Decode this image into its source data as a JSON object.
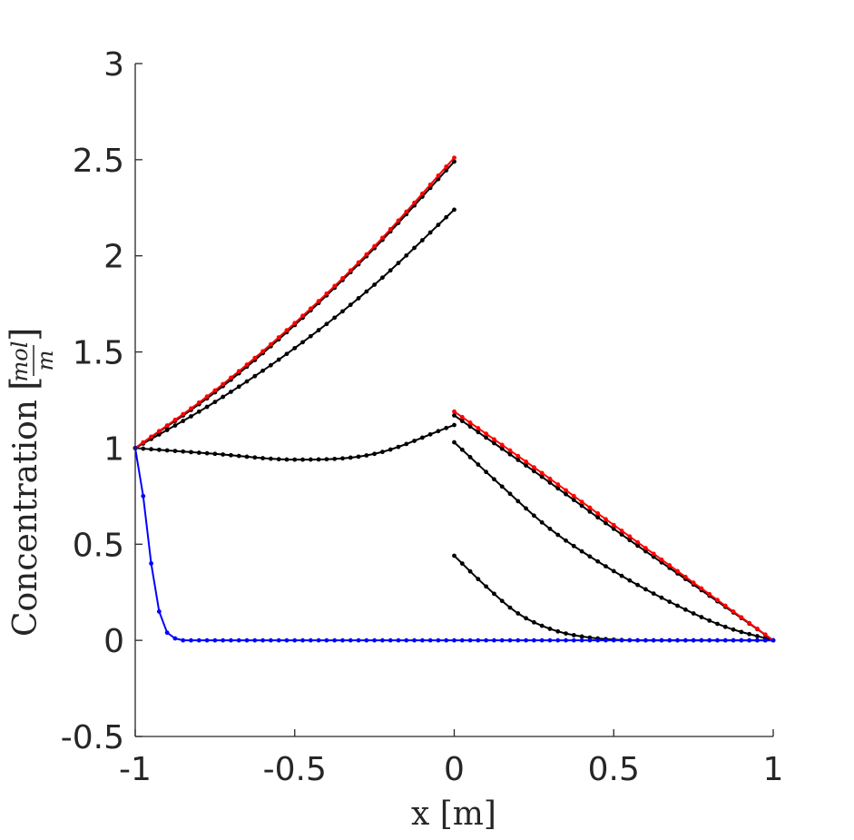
{
  "chart_data": {
    "type": "line",
    "xlabel": "x [m]",
    "ylabel": {
      "prefix": "Concentration",
      "unit_numerator": "mol",
      "unit_denominator": "m"
    },
    "xlim": [
      -1,
      1
    ],
    "ylim": [
      -0.5,
      3
    ],
    "xticks": [
      "-1",
      "-0.5",
      "0",
      "0.5",
      "1"
    ],
    "xtick_values": [
      -1,
      -0.5,
      0,
      0.5,
      1
    ],
    "yticks": [
      "-0.5",
      "0",
      "0.5",
      "1",
      "1.5",
      "2",
      "2.5",
      "3"
    ],
    "ytick_values": [
      -0.5,
      0,
      0.5,
      1,
      1.5,
      2,
      2.5,
      3
    ],
    "grid": false,
    "legend": "none",
    "series": [
      {
        "color": "#000000",
        "values": [
          [
            -1,
            1.0
          ],
          [
            -0.75,
            0.97
          ],
          [
            -0.5,
            0.94
          ],
          [
            -0.25,
            0.97
          ],
          [
            0,
            1.12
          ]
        ]
      },
      {
        "color": "#000000",
        "values": [
          [
            -1,
            1.0
          ],
          [
            -0.75,
            1.24
          ],
          [
            -0.5,
            1.52
          ],
          [
            -0.25,
            1.85
          ],
          [
            0,
            2.24
          ]
        ]
      },
      {
        "color": "#000000",
        "values": [
          [
            -1,
            1.0
          ],
          [
            -0.75,
            1.29
          ],
          [
            -0.5,
            1.64
          ],
          [
            -0.25,
            2.04
          ],
          [
            0,
            2.49
          ]
        ]
      },
      {
        "color": "#000000",
        "values": [
          [
            0,
            0.44
          ],
          [
            0.1,
            0.28
          ],
          [
            0.2,
            0.14
          ],
          [
            0.3,
            0.06
          ],
          [
            0.4,
            0.02
          ],
          [
            0.6,
            0.0
          ],
          [
            1,
            0.0
          ]
        ]
      },
      {
        "color": "#000000",
        "values": [
          [
            0,
            1.03
          ],
          [
            0.15,
            0.8
          ],
          [
            0.3,
            0.58
          ],
          [
            0.5,
            0.36
          ],
          [
            0.7,
            0.18
          ],
          [
            0.85,
            0.07
          ],
          [
            1,
            0.0
          ]
        ]
      },
      {
        "color": "#000000",
        "values": [
          [
            0,
            1.17
          ],
          [
            0.25,
            0.88
          ],
          [
            0.5,
            0.58
          ],
          [
            0.75,
            0.29
          ],
          [
            1,
            0.0
          ]
        ]
      },
      {
        "color": "#ff0000",
        "values": [
          [
            -1,
            1.0
          ],
          [
            -0.75,
            1.3
          ],
          [
            -0.5,
            1.65
          ],
          [
            -0.25,
            2.05
          ],
          [
            0,
            2.51
          ]
        ]
      },
      {
        "color": "#ff0000",
        "values": [
          [
            0,
            1.19
          ],
          [
            0.25,
            0.9
          ],
          [
            0.5,
            0.6
          ],
          [
            0.75,
            0.3
          ],
          [
            1,
            0.0
          ]
        ]
      },
      {
        "color": "#0000ff",
        "values": [
          [
            -1,
            1.0
          ],
          [
            -0.975,
            0.75
          ],
          [
            -0.95,
            0.4
          ],
          [
            -0.925,
            0.15
          ],
          [
            -0.9,
            0.04
          ],
          [
            -0.875,
            0.01
          ],
          [
            -0.85,
            0.0
          ],
          [
            0,
            0.0
          ],
          [
            1,
            0.0
          ]
        ]
      }
    ]
  }
}
